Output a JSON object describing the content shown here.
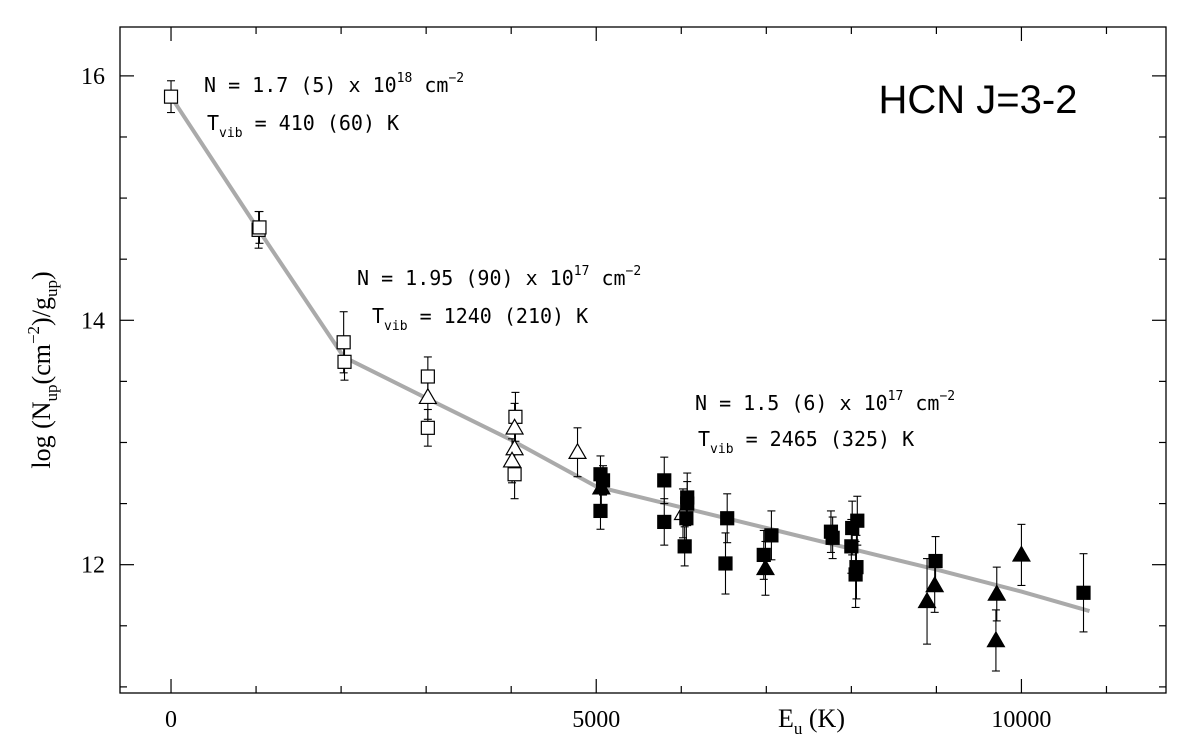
{
  "chart_data": {
    "type": "scatter",
    "title": "HCN J=3-2",
    "xlabel": {
      "main": "E",
      "sub": "u",
      "rest": " (K)"
    },
    "ylabel": {
      "p1": "log (N",
      "sub1": "up",
      "p2": "(cm",
      "sup": "−2",
      "p3": ")/g",
      "sub2": "up",
      "p4": ")"
    },
    "xlim": [
      -600,
      11700
    ],
    "ylim": [
      10.95,
      16.4
    ],
    "xticks": [
      0,
      5000,
      10000
    ],
    "yticks": [
      12,
      14,
      16
    ],
    "grid": false,
    "annotations": [
      {
        "line1": {
          "pre": "N = 1.7 (5) x 10",
          "sup": "18",
          "post": " cm",
          "sup2": "−2"
        },
        "line2": {
          "pre": "T",
          "sub": "vib",
          "post": " = 410 (60) K"
        }
      },
      {
        "line1": {
          "pre": "N = 1.95 (90) x 10",
          "sup": "17",
          "post": " cm",
          "sup2": "−2"
        },
        "line2": {
          "pre": "T",
          "sub": "vib",
          "post": " = 1240 (210) K"
        }
      },
      {
        "line1": {
          "pre": "N = 1.5 (6) x 10",
          "sup": "17",
          "post": " cm",
          "sup2": "−2"
        },
        "line2": {
          "pre": "T",
          "sub": "vib",
          "post": " = 2465 (325) K"
        }
      }
    ],
    "fit_line": {
      "color": "#aaaaaa",
      "x": [
        0,
        1030,
        2030,
        3040,
        4000,
        5000,
        6000,
        7000,
        8000,
        9000,
        10000,
        10800
      ],
      "y": [
        15.83,
        14.74,
        13.7,
        13.35,
        13.02,
        12.64,
        12.47,
        12.3,
        12.13,
        11.96,
        11.78,
        11.62
      ]
    },
    "series": [
      {
        "marker": "open-square",
        "points": [
          {
            "x": 0,
            "y": 15.83,
            "err": 0.13
          },
          {
            "x": 1030,
            "y": 14.74,
            "err": 0.15
          },
          {
            "x": 1040,
            "y": 14.76,
            "err": 0.13
          },
          {
            "x": 2030,
            "y": 13.82,
            "err": 0.25
          },
          {
            "x": 2040,
            "y": 13.66,
            "err": 0.15
          },
          {
            "x": 3020,
            "y": 13.54,
            "err": 0.16
          },
          {
            "x": 3020,
            "y": 13.12,
            "err": 0.15
          },
          {
            "x": 4050,
            "y": 13.21,
            "err": 0.2
          },
          {
            "x": 4040,
            "y": 12.74,
            "err": 0.2
          }
        ]
      },
      {
        "marker": "open-triangle",
        "points": [
          {
            "x": 3020,
            "y": 13.37,
            "err": 0.18
          },
          {
            "x": 4040,
            "y": 13.12,
            "err": 0.2
          },
          {
            "x": 4040,
            "y": 12.95,
            "err": 0.18
          },
          {
            "x": 4010,
            "y": 12.85,
            "err": 0.18
          },
          {
            "x": 4780,
            "y": 12.92,
            "err": 0.2
          },
          {
            "x": 6020,
            "y": 12.42,
            "err": 0.2
          }
        ]
      },
      {
        "marker": "filled-square",
        "points": [
          {
            "x": 5050,
            "y": 12.74,
            "err": 0.15
          },
          {
            "x": 5080,
            "y": 12.69,
            "err": 0.12
          },
          {
            "x": 5050,
            "y": 12.44,
            "err": 0.15
          },
          {
            "x": 5800,
            "y": 12.69,
            "err": 0.19
          },
          {
            "x": 5800,
            "y": 12.35,
            "err": 0.19
          },
          {
            "x": 6070,
            "y": 12.55,
            "err": 0.2
          },
          {
            "x": 6070,
            "y": 12.5,
            "err": 0.18
          },
          {
            "x": 6060,
            "y": 12.38,
            "err": 0.18
          },
          {
            "x": 6040,
            "y": 12.15,
            "err": 0.16
          },
          {
            "x": 6540,
            "y": 12.38,
            "err": 0.2
          },
          {
            "x": 6520,
            "y": 12.01,
            "err": 0.25
          },
          {
            "x": 6970,
            "y": 12.08,
            "err": 0.2
          },
          {
            "x": 7060,
            "y": 12.24,
            "err": 0.2
          },
          {
            "x": 7760,
            "y": 12.27,
            "err": 0.17
          },
          {
            "x": 7780,
            "y": 12.22,
            "err": 0.17
          },
          {
            "x": 8000,
            "y": 12.15,
            "err": 0.22
          },
          {
            "x": 8010,
            "y": 12.3,
            "err": 0.22
          },
          {
            "x": 8070,
            "y": 12.36,
            "err": 0.2
          },
          {
            "x": 8050,
            "y": 11.92,
            "err": 0.27
          },
          {
            "x": 8060,
            "y": 11.98,
            "err": 0.26
          },
          {
            "x": 8990,
            "y": 12.03,
            "err": 0.2
          },
          {
            "x": 10730,
            "y": 11.77,
            "err": 0.32
          }
        ]
      },
      {
        "marker": "filled-triangle",
        "points": [
          {
            "x": 5060,
            "y": 12.63,
            "err": 0.15
          },
          {
            "x": 6990,
            "y": 11.97,
            "err": 0.22
          },
          {
            "x": 8980,
            "y": 11.83,
            "err": 0.22
          },
          {
            "x": 8890,
            "y": 11.7,
            "err": 0.35
          },
          {
            "x": 9710,
            "y": 11.76,
            "err": 0.22
          },
          {
            "x": 9700,
            "y": 11.38,
            "err": 0.25
          },
          {
            "x": 10000,
            "y": 12.08,
            "err": 0.25
          }
        ]
      }
    ]
  }
}
